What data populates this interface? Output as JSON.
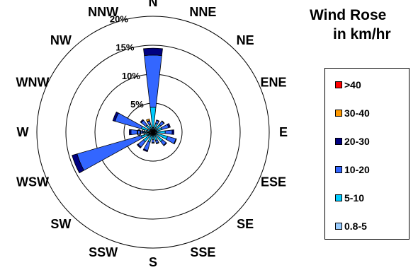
{
  "chart_data": {
    "type": "polar-bar",
    "title_lines": [
      "Wind Rose",
      "in km/hr"
    ],
    "directions": [
      "N",
      "NNE",
      "NE",
      "ENE",
      "E",
      "ESE",
      "SE",
      "SSE",
      "S",
      "SSW",
      "SW",
      "WSW",
      "W",
      "WNW",
      "NW",
      "NNW"
    ],
    "radial_ticks": [
      "0%",
      "5%",
      "10%",
      "15%",
      "20%"
    ],
    "radial_max": 20,
    "series": [
      {
        "name": "0.8-5",
        "color": "#99ccff",
        "values": [
          0.8,
          0.6,
          0.5,
          0.6,
          0.6,
          0.6,
          0.6,
          0.5,
          0.5,
          0.6,
          0.6,
          0.6,
          0.6,
          0.6,
          0.6,
          0.6
        ]
      },
      {
        "name": "5-10",
        "color": "#00ccff",
        "values": [
          3.5,
          1.0,
          1.2,
          1.0,
          1.5,
          2.0,
          1.5,
          1.0,
          0.8,
          1.2,
          1.5,
          1.5,
          1.0,
          1.5,
          1.0,
          0.8
        ]
      },
      {
        "name": "10-20",
        "color": "#3366ff",
        "values": [
          9.0,
          0.5,
          0.7,
          1.2,
          1.2,
          1.5,
          0.8,
          0.5,
          0.5,
          1.5,
          1.2,
          11.5,
          2.2,
          4.7,
          1.0,
          0.6
        ]
      },
      {
        "name": "20-30",
        "color": "#000080",
        "values": [
          1.2,
          0.1,
          0.1,
          0.3,
          0.3,
          0.1,
          0.1,
          0.1,
          0.1,
          0.2,
          0.2,
          0.9,
          0.3,
          0.4,
          0.2,
          0.1
        ]
      },
      {
        "name": "30-40",
        "color": "#ff9900",
        "values": [
          0,
          0,
          0,
          0,
          0,
          0,
          0,
          0,
          0,
          0,
          0,
          0,
          0,
          0,
          0,
          0.3
        ]
      },
      {
        "name": ">40",
        "color": "#ff0000",
        "values": [
          0,
          0,
          0,
          0,
          0,
          0,
          0,
          0,
          0,
          0,
          0,
          0,
          0,
          0,
          0,
          0
        ]
      }
    ],
    "legend": [
      ">40",
      "30-40",
      "20-30",
      "10-20",
      "5-10",
      "0.8-5"
    ],
    "legend_colors": [
      "#ff0000",
      "#ff9900",
      "#000080",
      "#3366ff",
      "#00ccff",
      "#99ccff"
    ],
    "grid": true,
    "legend_position": "right"
  }
}
